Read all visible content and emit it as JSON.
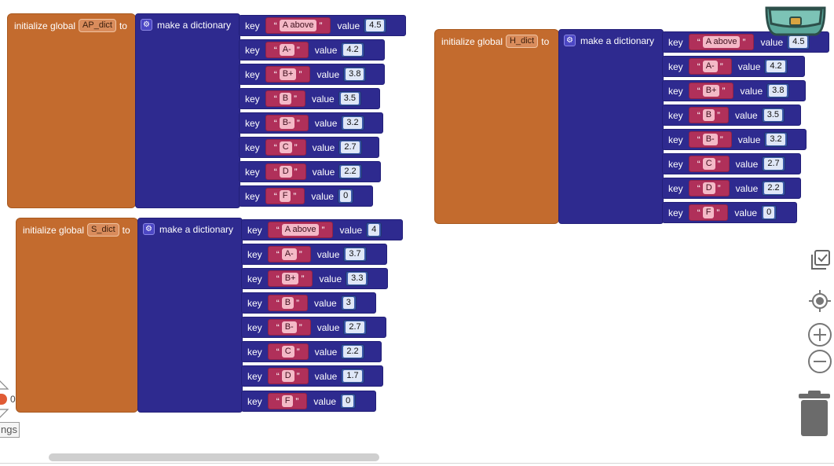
{
  "blocks": [
    {
      "var_prefix": "initialize global",
      "var_name": "AP_dict",
      "var_suffix": "to",
      "dict_label": "make a dictionary",
      "key_label": "key",
      "value_label": "value",
      "entries": [
        {
          "key": "A above",
          "value": "4.5"
        },
        {
          "key": "A-",
          "value": "4.2"
        },
        {
          "key": "B+",
          "value": "3.8"
        },
        {
          "key": "B",
          "value": "3.5"
        },
        {
          "key": "B-",
          "value": "3.2"
        },
        {
          "key": "C",
          "value": "2.7"
        },
        {
          "key": "D",
          "value": "2.2"
        },
        {
          "key": "F",
          "value": "0"
        }
      ]
    },
    {
      "var_prefix": "initialize global",
      "var_name": "S_dict",
      "var_suffix": "to",
      "dict_label": "make a dictionary",
      "key_label": "key",
      "value_label": "value",
      "entries": [
        {
          "key": "A above",
          "value": "4"
        },
        {
          "key": "A-",
          "value": "3.7"
        },
        {
          "key": "B+",
          "value": "3.3"
        },
        {
          "key": "B",
          "value": "3"
        },
        {
          "key": "B-",
          "value": "2.7"
        },
        {
          "key": "C",
          "value": "2.2"
        },
        {
          "key": "D",
          "value": "1.7"
        },
        {
          "key": "F",
          "value": "0"
        }
      ]
    },
    {
      "var_prefix": "initialize global",
      "var_name": "H_dict",
      "var_suffix": "to",
      "dict_label": "make a dictionary",
      "key_label": "key",
      "value_label": "value",
      "entries": [
        {
          "key": "A above",
          "value": "4.5"
        },
        {
          "key": "A-",
          "value": "4.2"
        },
        {
          "key": "B+",
          "value": "3.8"
        },
        {
          "key": "B",
          "value": "3.5"
        },
        {
          "key": "B-",
          "value": "3.2"
        },
        {
          "key": "C",
          "value": "2.7"
        },
        {
          "key": "D",
          "value": "2.2"
        },
        {
          "key": "F",
          "value": "0"
        }
      ]
    }
  ],
  "status": {
    "error_count": "0",
    "warnings_label": "ngs"
  },
  "controls": {
    "quote_open": "“",
    "quote_close": "”"
  },
  "icons": [
    "backpack-icon",
    "check-all-icon",
    "center-target-icon",
    "zoom-in-icon",
    "zoom-out-icon",
    "trash-icon",
    "warning-triangle-icon",
    "gear-icon"
  ],
  "colors": {
    "init_block": "#c36b2e",
    "dict_block": "#2e2a8f",
    "text_block": "#b0305a",
    "number_block": "#3a58a8"
  }
}
